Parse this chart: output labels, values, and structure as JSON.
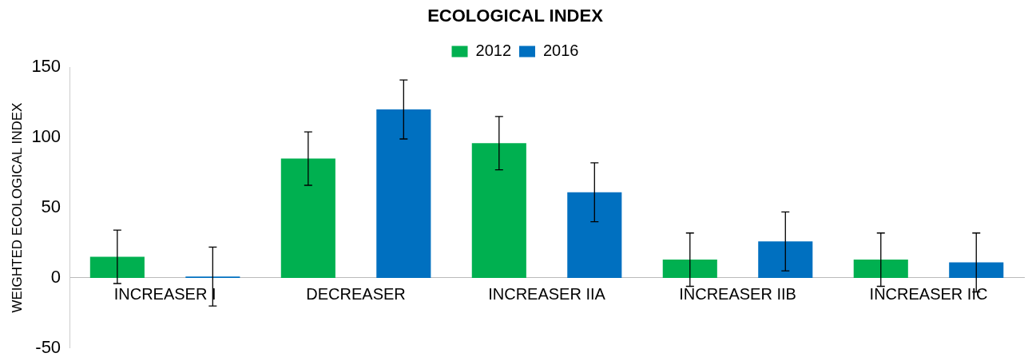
{
  "chart_data": {
    "type": "bar",
    "title": "ECOLOGICAL INDEX",
    "ylabel": "WEIGHTED ECOLOGICAL INDEX",
    "categories": [
      "INCREASER I",
      "DECREASER",
      "INCREASER IIA",
      "INCREASER IIB",
      "INCREASER IIC"
    ],
    "series": [
      {
        "name": "2012",
        "color": "#00b050",
        "values": [
          15,
          85,
          96,
          13,
          13
        ],
        "errors": [
          19,
          19,
          19,
          19,
          19
        ]
      },
      {
        "name": "2016",
        "color": "#0070c0",
        "values": [
          1,
          120,
          61,
          26,
          11
        ],
        "errors": [
          21,
          21,
          21,
          21,
          21
        ]
      }
    ],
    "ylim": [
      -50,
      150
    ],
    "yticks": [
      -50,
      0,
      50,
      100,
      150
    ],
    "grid": false,
    "legend": "top"
  }
}
